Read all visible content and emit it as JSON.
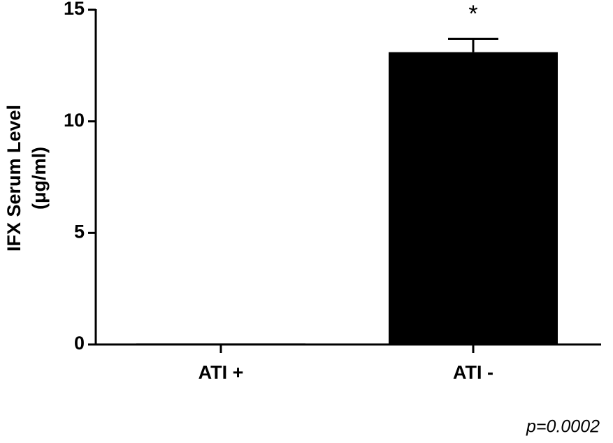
{
  "chart_data": {
    "type": "bar",
    "ylabel": [
      "IFX Serum Level",
      "(μg/ml)"
    ],
    "categories": [
      "ATI +",
      "ATI -"
    ],
    "values": [
      0.05,
      13.1
    ],
    "errors": [
      null,
      0.6
    ],
    "color": "#000000",
    "ylim": [
      0,
      15
    ],
    "yticks": [
      0,
      5,
      10,
      15
    ],
    "annotations": {
      "significance": "*",
      "p_value": "p=0.0002"
    }
  }
}
